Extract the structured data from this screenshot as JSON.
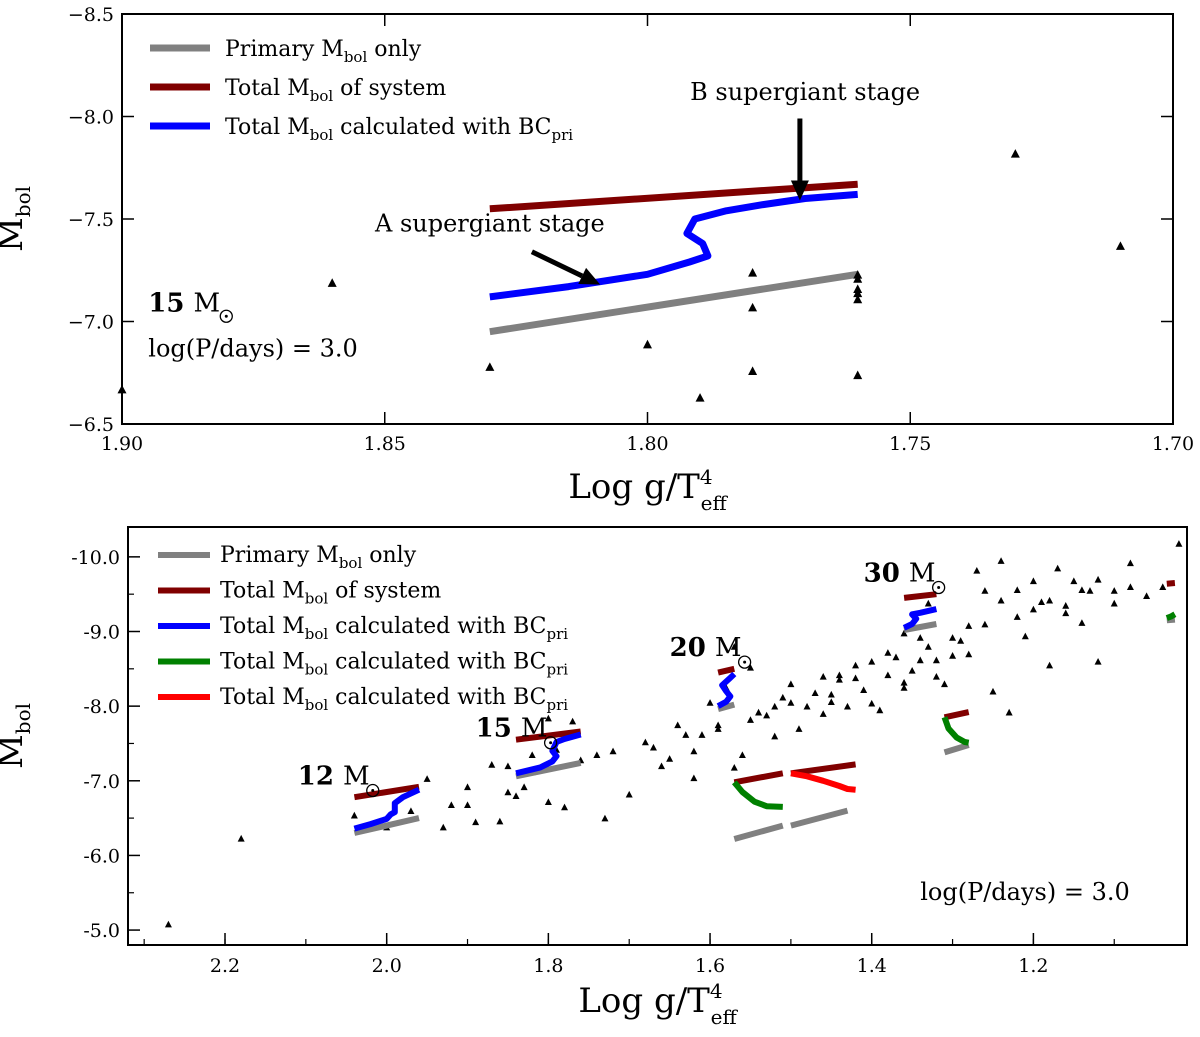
{
  "chart_data": [
    {
      "type": "scatter",
      "xlabel": "Log g/T",
      "xlabel_sup": "4",
      "xlabel_sub": "eff",
      "ylabel": "M",
      "ylabel_sub": "bol",
      "xlim": [
        1.9,
        1.7
      ],
      "ylim": [
        -6.5,
        -8.5
      ],
      "x_ticks": [
        1.9,
        1.85,
        1.8,
        1.75,
        1.7
      ],
      "x_tick_labels": [
        "1.90",
        "1.85",
        "1.80",
        "1.75",
        "1.70"
      ],
      "y_ticks": [
        -6.5,
        -7.0,
        -7.5,
        -8.0,
        -8.5
      ],
      "y_tick_labels": [
        "−6.5",
        "−7.0",
        "−7.5",
        "−8.0",
        "−8.5"
      ],
      "legend_position": "top-left",
      "series": [
        {
          "name": "Primary M_bol only",
          "label_parts": [
            "Primary ",
            "M",
            "bol",
            " only",
            ""
          ],
          "color": "#808080",
          "x": [
            1.83,
            1.76
          ],
          "y": [
            -6.95,
            -7.23
          ]
        },
        {
          "name": "Total M_bol of system",
          "label_parts": [
            "Total ",
            "M",
            "bol",
            " of system",
            ""
          ],
          "color": "#800000",
          "x": [
            1.83,
            1.76
          ],
          "y": [
            -7.55,
            -7.67
          ]
        },
        {
          "name": "Total M_bol calculated with BC_pri",
          "label_parts": [
            "Total ",
            "M",
            "bol",
            " calculated with BC",
            "pri"
          ],
          "color": "#0000ff",
          "x": [
            1.83,
            1.815,
            1.8,
            1.792,
            1.7885,
            1.7895,
            1.7925,
            1.791,
            1.785,
            1.778,
            1.77,
            1.76
          ],
          "y": [
            -7.12,
            -7.17,
            -7.23,
            -7.29,
            -7.32,
            -7.38,
            -7.43,
            -7.5,
            -7.54,
            -7.57,
            -7.6,
            -7.62
          ]
        }
      ],
      "scatter_points": {
        "x": [
          1.9,
          1.86,
          1.83,
          1.8,
          1.79,
          1.78,
          1.78,
          1.78,
          1.76,
          1.76,
          1.76,
          1.76,
          1.76,
          1.76,
          1.73,
          1.71
        ],
        "y": [
          -6.67,
          -7.19,
          -6.78,
          -6.89,
          -6.63,
          -6.76,
          -7.07,
          -7.24,
          -6.74,
          -7.11,
          -7.14,
          -7.16,
          -7.21,
          -7.23,
          -7.82,
          -7.37
        ]
      },
      "annotations": [
        {
          "text": "A supergiant stage",
          "x": 1.83,
          "y": -7.44,
          "arrow_from": [
            1.822,
            -7.34
          ],
          "arrow_to": [
            1.809,
            -7.18
          ]
        },
        {
          "text": "B supergiant stage",
          "x": 1.77,
          "y": -8.08,
          "arrow_from": [
            1.771,
            -7.99
          ],
          "arrow_to": [
            1.771,
            -7.59
          ]
        }
      ],
      "mass_label": {
        "number": "15",
        "unit": "M",
        "x": 1.895,
        "y": -7.05
      },
      "period_label": {
        "text": "log(P/days) = 3.0",
        "x": 1.895,
        "y": -6.83
      }
    },
    {
      "type": "scatter",
      "xlabel": "Log g/T",
      "xlabel_sup": "4",
      "xlabel_sub": "eff",
      "ylabel": "M",
      "ylabel_sub": "bol",
      "xlim": [
        2.32,
        1.01
      ],
      "ylim": [
        -4.8,
        -10.4
      ],
      "x_ticks": [
        2.2,
        2.0,
        1.8,
        1.6,
        1.4,
        1.2
      ],
      "x_tick_labels": [
        "2.2",
        "2.0",
        "1.8",
        "1.6",
        "1.4",
        "1.2"
      ],
      "y_ticks": [
        -5.0,
        -6.0,
        -7.0,
        -8.0,
        -9.0,
        -10.0
      ],
      "y_tick_labels": [
        "-5.0",
        "-6.0",
        "-7.0",
        "-8.0",
        "-9.0",
        "-10.0"
      ],
      "legend_position": "top-left",
      "legend": [
        {
          "label_parts": [
            "Primary ",
            "M",
            "bol",
            " only",
            ""
          ],
          "color": "#808080"
        },
        {
          "label_parts": [
            "Total ",
            "M",
            "bol",
            " of system",
            ""
          ],
          "color": "#800000"
        },
        {
          "label_parts": [
            "Total ",
            "M",
            "bol",
            " calculated with BC",
            "pri"
          ],
          "color": "#0000ff"
        },
        {
          "label_parts": [
            "Total ",
            "M",
            "bol",
            " calculated with BC",
            "pri"
          ],
          "color": "#008000"
        },
        {
          "label_parts": [
            "Total ",
            "M",
            "bol",
            " calculated with BC",
            "pri"
          ],
          "color": "#ff0000"
        }
      ],
      "tracks": [
        {
          "color": "#808080",
          "x": [
            2.04,
            1.96
          ],
          "y": [
            -6.3,
            -6.5
          ]
        },
        {
          "color": "#800000",
          "x": [
            2.04,
            1.96
          ],
          "y": [
            -6.78,
            -6.92
          ]
        },
        {
          "color": "#0000ff",
          "x": [
            2.04,
            2.02,
            2.0,
            1.995,
            1.99,
            1.99,
            1.98,
            1.96
          ],
          "y": [
            -6.36,
            -6.42,
            -6.49,
            -6.55,
            -6.58,
            -6.7,
            -6.78,
            -6.88
          ]
        },
        {
          "color": "#808080",
          "x": [
            1.84,
            1.76
          ],
          "y": [
            -7.06,
            -7.24
          ]
        },
        {
          "color": "#800000",
          "x": [
            1.84,
            1.76
          ],
          "y": [
            -7.55,
            -7.66
          ]
        },
        {
          "color": "#0000ff",
          "x": [
            1.84,
            1.81,
            1.795,
            1.79,
            1.795,
            1.79,
            1.78,
            1.76
          ],
          "y": [
            -7.1,
            -7.18,
            -7.26,
            -7.33,
            -7.4,
            -7.52,
            -7.56,
            -7.62
          ]
        },
        {
          "color": "#808080",
          "x": [
            1.59,
            1.57
          ],
          "y": [
            -7.96,
            -8.02
          ]
        },
        {
          "color": "#800000",
          "x": [
            1.59,
            1.57
          ],
          "y": [
            -8.45,
            -8.5
          ]
        },
        {
          "color": "#0000ff",
          "x": [
            1.59,
            1.58,
            1.575,
            1.58,
            1.585,
            1.575,
            1.57
          ],
          "y": [
            -8.0,
            -8.06,
            -8.13,
            -8.2,
            -8.28,
            -8.38,
            -8.43
          ]
        },
        {
          "color": "#808080",
          "x": [
            1.57,
            1.51
          ],
          "y": [
            -6.22,
            -6.4
          ]
        },
        {
          "color": "#800000",
          "x": [
            1.57,
            1.51
          ],
          "y": [
            -6.98,
            -7.1
          ]
        },
        {
          "color": "#008000",
          "x": [
            1.57,
            1.56,
            1.545,
            1.53,
            1.51
          ],
          "y": [
            -6.98,
            -6.85,
            -6.72,
            -6.66,
            -6.65
          ]
        },
        {
          "color": "#808080",
          "x": [
            1.5,
            1.43
          ],
          "y": [
            -6.4,
            -6.6
          ]
        },
        {
          "color": "#800000",
          "x": [
            1.5,
            1.42
          ],
          "y": [
            -7.1,
            -7.22
          ]
        },
        {
          "color": "#ff0000",
          "x": [
            1.5,
            1.48,
            1.46,
            1.44,
            1.43,
            1.42
          ],
          "y": [
            -7.1,
            -7.06,
            -7.0,
            -6.93,
            -6.89,
            -6.88
          ]
        },
        {
          "color": "#808080",
          "x": [
            1.36,
            1.32
          ],
          "y": [
            -9.02,
            -9.1
          ]
        },
        {
          "color": "#800000",
          "x": [
            1.36,
            1.32
          ],
          "y": [
            -9.45,
            -9.5
          ]
        },
        {
          "color": "#0000ff",
          "x": [
            1.36,
            1.35,
            1.345,
            1.35,
            1.34,
            1.32
          ],
          "y": [
            -9.05,
            -9.1,
            -9.17,
            -9.23,
            -9.25,
            -9.3
          ]
        },
        {
          "color": "#808080",
          "x": [
            1.31,
            1.28
          ],
          "y": [
            -7.38,
            -7.48
          ]
        },
        {
          "color": "#800000",
          "x": [
            1.31,
            1.28
          ],
          "y": [
            -7.85,
            -7.92
          ]
        },
        {
          "color": "#008000",
          "x": [
            1.31,
            1.305,
            1.295,
            1.285,
            1.28
          ],
          "y": [
            -7.85,
            -7.7,
            -7.58,
            -7.52,
            -7.51
          ]
        },
        {
          "color": "#808080",
          "x": [
            1.035,
            1.025
          ],
          "y": [
            -9.15,
            -9.16
          ]
        },
        {
          "color": "#800000",
          "x": [
            1.035,
            1.025
          ],
          "y": [
            -9.64,
            -9.65
          ]
        },
        {
          "color": "#008000",
          "x": [
            1.035,
            1.03,
            1.025
          ],
          "y": [
            -9.18,
            -9.2,
            -9.23
          ]
        }
      ],
      "scatter_points": {
        "x": [
          2.27,
          2.18,
          2.04,
          2.0,
          1.97,
          1.95,
          1.93,
          1.92,
          1.9,
          1.89,
          1.87,
          1.86,
          1.85,
          1.84,
          1.83,
          1.82,
          1.81,
          1.8,
          1.79,
          1.78,
          1.77,
          1.76,
          1.74,
          1.73,
          1.72,
          1.7,
          1.68,
          1.67,
          1.66,
          1.65,
          1.64,
          1.63,
          1.62,
          1.61,
          1.6,
          1.59,
          1.58,
          1.57,
          1.56,
          1.55,
          1.54,
          1.53,
          1.52,
          1.51,
          1.5,
          1.49,
          1.48,
          1.47,
          1.46,
          1.45,
          1.44,
          1.43,
          1.42,
          1.41,
          1.4,
          1.39,
          1.38,
          1.37,
          1.36,
          1.35,
          1.34,
          1.33,
          1.32,
          1.31,
          1.3,
          1.29,
          1.28,
          1.27,
          1.26,
          1.25,
          1.24,
          1.23,
          1.22,
          1.21,
          1.2,
          1.19,
          1.18,
          1.17,
          1.16,
          1.15,
          1.14,
          1.13,
          1.12,
          1.1,
          1.08,
          1.06,
          1.04,
          1.02,
          1.8,
          1.82,
          1.85,
          1.9,
          1.62,
          1.59,
          1.55,
          1.5,
          1.45,
          1.42,
          1.4,
          1.38,
          1.36,
          1.34,
          1.33,
          1.3,
          1.28,
          1.26,
          1.24,
          1.22,
          1.2,
          1.18,
          1.16,
          1.14,
          1.12,
          1.1,
          1.08,
          1.46,
          1.52,
          1.57,
          1.44,
          1.36,
          1.32
        ],
        "y": [
          -5.08,
          -6.23,
          -6.54,
          -6.38,
          -6.6,
          -7.03,
          -6.38,
          -6.68,
          -6.68,
          -6.45,
          -7.22,
          -6.46,
          -6.85,
          -6.8,
          -6.92,
          -7.35,
          -7.15,
          -6.72,
          -7.42,
          -6.65,
          -7.8,
          -7.28,
          -7.35,
          -6.5,
          -7.4,
          -6.82,
          -7.52,
          -7.45,
          -7.2,
          -7.3,
          -7.75,
          -7.62,
          -7.04,
          -7.62,
          -8.05,
          -7.75,
          -8.25,
          -7.18,
          -7.35,
          -8.52,
          -7.92,
          -7.88,
          -8.0,
          -8.12,
          -8.3,
          -7.7,
          -8.0,
          -8.18,
          -7.9,
          -8.06,
          -8.42,
          -8.0,
          -8.55,
          -8.22,
          -8.6,
          -7.95,
          -8.42,
          -8.66,
          -8.25,
          -8.48,
          -8.62,
          -8.8,
          -8.4,
          -8.3,
          -8.68,
          -8.88,
          -8.7,
          -9.82,
          -9.1,
          -8.2,
          -9.42,
          -7.92,
          -9.56,
          -8.94,
          -9.68,
          -9.4,
          -8.55,
          -9.85,
          -9.25,
          -9.68,
          -9.12,
          -9.55,
          -8.6,
          -9.55,
          -9.92,
          -9.48,
          -9.6,
          -10.18,
          -7.84,
          -7.12,
          -7.2,
          -6.92,
          -7.4,
          -7.7,
          -7.82,
          -8.05,
          -8.16,
          -8.38,
          -8.04,
          -8.72,
          -8.32,
          -8.92,
          -9.38,
          -8.92,
          -9.08,
          -9.55,
          -9.95,
          -9.2,
          -9.3,
          -9.42,
          -9.35,
          -9.56,
          -9.7,
          -9.38,
          -9.6,
          -8.4,
          -7.6,
          -8.8,
          -8.36,
          -8.98,
          -8.62
        ]
      },
      "mass_labels": [
        {
          "number": "12",
          "unit": "M",
          "x": 2.11,
          "y": -6.95
        },
        {
          "number": "15",
          "unit": "M",
          "x": 1.89,
          "y": -7.59
        },
        {
          "number": "20",
          "unit": "M",
          "x": 1.65,
          "y": -8.67
        },
        {
          "number": "30",
          "unit": "M",
          "x": 1.41,
          "y": -9.67
        }
      ],
      "period_label": {
        "text": "log(P/days) = 3.0",
        "x": 1.34,
        "y": -5.4
      }
    }
  ]
}
